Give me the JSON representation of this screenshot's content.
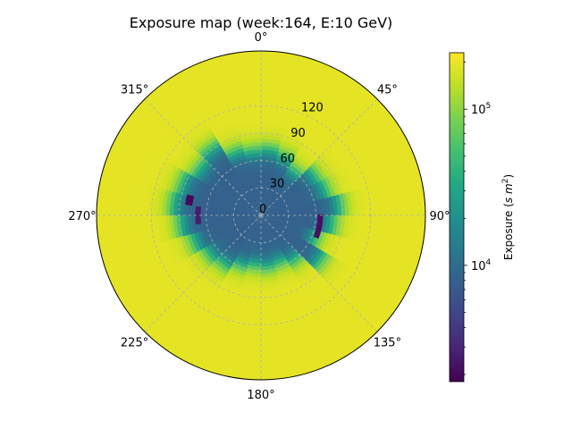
{
  "chart_data": {
    "type": "heatmap",
    "projection": "polar",
    "title": "Exposure map (week:164, E:10 GeV)",
    "theta_zero_location": "N",
    "theta_direction": "clockwise",
    "theta_ticks": [
      "0°",
      "45°",
      "90°",
      "135°",
      "180°",
      "225°",
      "270°",
      "315°"
    ],
    "theta_tick_values": [
      0,
      45,
      90,
      135,
      180,
      225,
      270,
      315
    ],
    "r_ticks": [
      "0",
      "30",
      "60",
      "90",
      "120"
    ],
    "r_tick_values": [
      0,
      30,
      60,
      90,
      120
    ],
    "rlim": [
      0,
      180
    ],
    "grid": true,
    "colorbar": {
      "label": "Exposure ($s$ $m^2$)",
      "label_main": "Exposure (",
      "label_s": "s",
      "label_m": "m",
      "label_exp": "2",
      "label_close": ")",
      "scale": "log",
      "colormap": "viridis",
      "vmin": 1800,
      "vmax": 230000,
      "ticks": [
        "10",
        "10"
      ],
      "tick_exponents": [
        "4",
        "5"
      ],
      "tick_values": [
        10000,
        100000
      ]
    },
    "azimuth_sectors": [
      {
        "theta": [
          0,
          15
        ],
        "r_transition": 72
      },
      {
        "theta": [
          15,
          30
        ],
        "r_transition": 68
      },
      {
        "theta": [
          30,
          45
        ],
        "r_transition": 60
      },
      {
        "theta": [
          45,
          60
        ],
        "r_transition": 72
      },
      {
        "theta": [
          60,
          75
        ],
        "r_transition": 75
      },
      {
        "theta": [
          75,
          90
        ],
        "r_transition": 86
      },
      {
        "theta": [
          90,
          105
        ],
        "r_transition": 78
      },
      {
        "theta": [
          105,
          120
        ],
        "r_transition": 64
      },
      {
        "theta": [
          120,
          135
        ],
        "r_transition": 80
      },
      {
        "theta": [
          135,
          150
        ],
        "r_transition": 60
      },
      {
        "theta": [
          150,
          165
        ],
        "r_transition": 54
      },
      {
        "theta": [
          165,
          180
        ],
        "r_transition": 56
      },
      {
        "theta": [
          180,
          195
        ],
        "r_transition": 54
      },
      {
        "theta": [
          195,
          210
        ],
        "r_transition": 58
      },
      {
        "theta": [
          210,
          225
        ],
        "r_transition": 66
      },
      {
        "theta": [
          225,
          240
        ],
        "r_transition": 70
      },
      {
        "theta": [
          240,
          255
        ],
        "r_transition": 78
      },
      {
        "theta": [
          255,
          270
        ],
        "r_transition": 88
      },
      {
        "theta": [
          270,
          285
        ],
        "r_transition": 96
      },
      {
        "theta": [
          285,
          300
        ],
        "r_transition": 92
      },
      {
        "theta": [
          300,
          315
        ],
        "r_transition": 84
      },
      {
        "theta": [
          315,
          330
        ],
        "r_transition": 90
      },
      {
        "theta": [
          330,
          345
        ],
        "r_transition": 74
      },
      {
        "theta": [
          345,
          360
        ],
        "r_transition": 70
      }
    ],
    "low_exposure_arcs": [
      {
        "theta": [
          89,
          112
        ],
        "r": [
          62,
          68
        ],
        "value": 2200
      },
      {
        "theta": [
          278,
          286
        ],
        "r": [
          76,
          84
        ],
        "value": 2000
      },
      {
        "theta": [
          262,
          278
        ],
        "r": [
          66,
          72
        ],
        "value": 2600
      }
    ],
    "exposure_levels": {
      "inner": 8000,
      "outer": 190000
    }
  }
}
